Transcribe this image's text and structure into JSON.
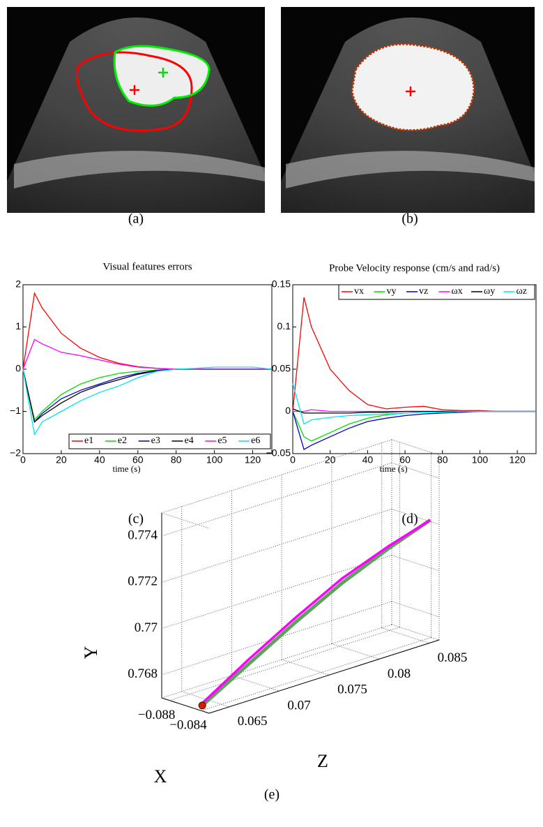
{
  "figure": {
    "captions": [
      "(a)",
      "(b)",
      "(c)",
      "(d)",
      "(e)"
    ]
  },
  "chart_data": [
    {
      "type": "line",
      "title": "Visual features errors",
      "x_label": "time (s)",
      "x": [
        0,
        6,
        10,
        20,
        30,
        40,
        50,
        60,
        70,
        80,
        90,
        100,
        110,
        120,
        130
      ],
      "xlim": [
        0,
        130
      ],
      "xticks": [
        0,
        20,
        40,
        60,
        80,
        100,
        120
      ],
      "ylim": [
        -2,
        2
      ],
      "yticks": [
        {
          "value": -2,
          "label": "−2"
        },
        {
          "value": -1,
          "label": "−1"
        },
        0,
        1,
        2
      ],
      "legend": "lower right",
      "series": [
        {
          "name": "e1",
          "color": "#ff0000",
          "values": [
            0,
            1.8,
            1.45,
            0.85,
            0.5,
            0.28,
            0.14,
            0.06,
            0.02,
            0,
            0,
            0,
            0,
            0,
            0
          ]
        },
        {
          "name": "e2",
          "color": "#00dd00",
          "values": [
            0,
            -1.2,
            -1.0,
            -0.6,
            -0.35,
            -0.2,
            -0.1,
            -0.05,
            -0.02,
            0,
            0,
            0,
            0,
            0,
            0
          ]
        },
        {
          "name": "e3",
          "color": "#0000cc",
          "values": [
            0,
            -1.25,
            -1.05,
            -0.7,
            -0.5,
            -0.35,
            -0.2,
            -0.1,
            -0.03,
            0,
            0,
            0,
            0,
            0,
            0
          ]
        },
        {
          "name": "e4",
          "color": "#000000",
          "values": [
            0,
            -1.25,
            -1.1,
            -0.8,
            -0.55,
            -0.38,
            -0.25,
            -0.12,
            -0.04,
            0,
            0,
            0,
            0,
            0,
            0
          ]
        },
        {
          "name": "e5",
          "color": "#ff00ff",
          "values": [
            0,
            0.7,
            0.6,
            0.4,
            0.32,
            0.22,
            0.12,
            0.05,
            0.02,
            0,
            0,
            0,
            0,
            0,
            0
          ]
        },
        {
          "name": "e6",
          "color": "#00e5ee",
          "values": [
            0,
            -1.55,
            -1.25,
            -1.0,
            -0.75,
            -0.55,
            -0.4,
            -0.2,
            -0.05,
            0,
            0.02,
            0.05,
            0.05,
            0.05,
            0
          ]
        }
      ]
    },
    {
      "type": "line",
      "title": "Probe Velocity response (cm/s and rad/s)",
      "x_label": "time (s)",
      "x": [
        0,
        6,
        10,
        20,
        30,
        40,
        50,
        60,
        70,
        80,
        90,
        100,
        110,
        120,
        130
      ],
      "xlim": [
        0,
        130
      ],
      "xticks": [
        0,
        20,
        40,
        60,
        80,
        100,
        120
      ],
      "ylim": [
        -0.05,
        0.15
      ],
      "yticks": [
        {
          "value": -0.05,
          "label": "−0.05"
        },
        0,
        0.05,
        0.1,
        0.15
      ],
      "legend": "upper right",
      "series": [
        {
          "name": "vx",
          "color": "#ff0000",
          "values": [
            0,
            0.135,
            0.1,
            0.05,
            0.025,
            0.008,
            0.003,
            0.005,
            0.006,
            0.002,
            0.001,
            0.001,
            0,
            0,
            0
          ]
        },
        {
          "name": "vy",
          "color": "#00dd00",
          "values": [
            0,
            -0.03,
            -0.035,
            -0.025,
            -0.015,
            -0.008,
            -0.004,
            -0.002,
            -0.001,
            0,
            0,
            0,
            0,
            0,
            0
          ]
        },
        {
          "name": "vz",
          "color": "#0000cc",
          "values": [
            0,
            -0.045,
            -0.04,
            -0.03,
            -0.02,
            -0.012,
            -0.008,
            -0.005,
            -0.003,
            -0.002,
            -0.001,
            0,
            0,
            0,
            0
          ]
        },
        {
          "name": "ωx",
          "color": "#ff00ff",
          "values": [
            0,
            0,
            0.002,
            0,
            0,
            0,
            0,
            0,
            0,
            0,
            0,
            0,
            0,
            0,
            0
          ]
        },
        {
          "name": "ωy",
          "color": "#000000",
          "values": [
            0.003,
            -0.002,
            -0.002,
            -0.002,
            -0.002,
            -0.001,
            -0.001,
            0,
            0,
            0,
            0,
            0,
            0,
            0,
            0
          ]
        },
        {
          "name": "ωz",
          "color": "#00e5ee",
          "values": [
            0.033,
            -0.015,
            -0.01,
            -0.007,
            -0.005,
            -0.004,
            -0.003,
            -0.002,
            -0.001,
            -0.001,
            0,
            0,
            0,
            0,
            0
          ]
        }
      ]
    },
    {
      "type": "line3d",
      "x_label": "X",
      "y_label": "Y",
      "z_label": "Z",
      "grid": true,
      "xlim": [
        -0.089,
        -0.083
      ],
      "xticks": [
        {
          "value": -0.088,
          "label": "−0.088"
        },
        {
          "value": -0.084,
          "label": "−0.084"
        }
      ],
      "ylim": [
        0.767,
        0.775
      ],
      "yticks": [
        0.768,
        0.77,
        0.772,
        0.774
      ],
      "zlim": [
        0.063,
        0.086
      ],
      "zticks": [
        0.065,
        0.07,
        0.075,
        0.08,
        0.085
      ],
      "start_color": "#cc2200",
      "series": [
        {
          "color": "#5fa05f",
          "x": [
            -0.0845,
            -0.0843,
            -0.0841,
            -0.0839,
            -0.0837,
            -0.0835
          ],
          "y": [
            0.7671,
            0.7683,
            0.7695,
            0.7706,
            0.7715,
            0.7722
          ],
          "z": [
            0.0635,
            0.068,
            0.0725,
            0.077,
            0.0815,
            0.0855
          ]
        },
        {
          "color": "#ff00ff",
          "x": [
            -0.0845,
            -0.0843,
            -0.0841,
            -0.0839,
            -0.0837,
            -0.0835
          ],
          "y": [
            0.7672,
            0.7685,
            0.7697,
            0.7708,
            0.7716,
            0.7722
          ],
          "z": [
            0.0635,
            0.068,
            0.0725,
            0.077,
            0.0815,
            0.0855
          ]
        }
      ]
    }
  ]
}
